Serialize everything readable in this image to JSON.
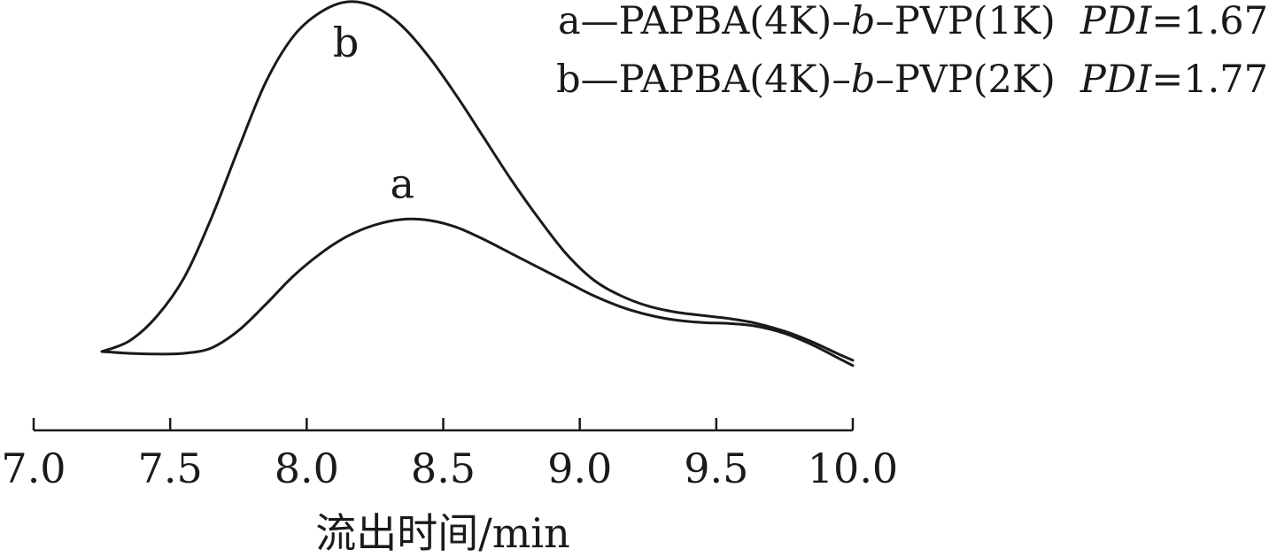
{
  "chart_data": {
    "type": "line",
    "title": "",
    "xlabel": "流出时间/min",
    "ylabel": "",
    "xlim": [
      7.0,
      10.0
    ],
    "x_ticks": [
      "7.0",
      "7.5",
      "8.0",
      "8.5",
      "9.0",
      "9.5",
      "10.0"
    ],
    "grid": false,
    "y_axis_shown": false,
    "y_units": "relative intensity (0–1)",
    "legend_position": "top-right",
    "series": [
      {
        "name": "a",
        "curve_label": "a",
        "legend": {
          "prefix": "a—PAPBA(4K)–",
          "block": "b",
          "middle": "–PVP(1K)",
          "pdi_label": "PDI",
          "pdi_value": "=1.67"
        },
        "points": [
          [
            7.25,
            0.0
          ],
          [
            7.35,
            -0.005
          ],
          [
            7.45,
            -0.007
          ],
          [
            7.55,
            -0.005
          ],
          [
            7.65,
            0.01
          ],
          [
            7.75,
            0.06
          ],
          [
            7.85,
            0.135
          ],
          [
            7.95,
            0.215
          ],
          [
            8.05,
            0.28
          ],
          [
            8.15,
            0.33
          ],
          [
            8.25,
            0.362
          ],
          [
            8.35,
            0.378
          ],
          [
            8.45,
            0.375
          ],
          [
            8.55,
            0.355
          ],
          [
            8.65,
            0.32
          ],
          [
            8.75,
            0.28
          ],
          [
            8.85,
            0.24
          ],
          [
            8.95,
            0.2
          ],
          [
            9.05,
            0.16
          ],
          [
            9.15,
            0.128
          ],
          [
            9.25,
            0.105
          ],
          [
            9.35,
            0.09
          ],
          [
            9.45,
            0.083
          ],
          [
            9.55,
            0.08
          ],
          [
            9.65,
            0.072
          ],
          [
            9.75,
            0.052
          ],
          [
            9.85,
            0.02
          ],
          [
            9.95,
            -0.02
          ],
          [
            10.0,
            -0.04
          ]
        ]
      },
      {
        "name": "b",
        "curve_label": "b",
        "legend": {
          "prefix": "b—PAPBA(4K)–",
          "block": "b",
          "middle": "–PVP(2K)",
          "pdi_label": "PDI",
          "pdi_value": "=1.77"
        },
        "points": [
          [
            7.25,
            0.0
          ],
          [
            7.35,
            0.03
          ],
          [
            7.45,
            0.1
          ],
          [
            7.55,
            0.21
          ],
          [
            7.65,
            0.38
          ],
          [
            7.75,
            0.58
          ],
          [
            7.85,
            0.77
          ],
          [
            7.95,
            0.9
          ],
          [
            8.05,
            0.97
          ],
          [
            8.15,
            1.0
          ],
          [
            8.25,
            0.985
          ],
          [
            8.35,
            0.93
          ],
          [
            8.45,
            0.84
          ],
          [
            8.55,
            0.73
          ],
          [
            8.65,
            0.61
          ],
          [
            8.75,
            0.49
          ],
          [
            8.85,
            0.38
          ],
          [
            8.95,
            0.28
          ],
          [
            9.05,
            0.205
          ],
          [
            9.15,
            0.16
          ],
          [
            9.25,
            0.13
          ],
          [
            9.35,
            0.113
          ],
          [
            9.45,
            0.103
          ],
          [
            9.55,
            0.094
          ],
          [
            9.65,
            0.08
          ],
          [
            9.75,
            0.058
          ],
          [
            9.85,
            0.028
          ],
          [
            9.95,
            -0.008
          ],
          [
            10.0,
            -0.025
          ]
        ]
      }
    ]
  }
}
